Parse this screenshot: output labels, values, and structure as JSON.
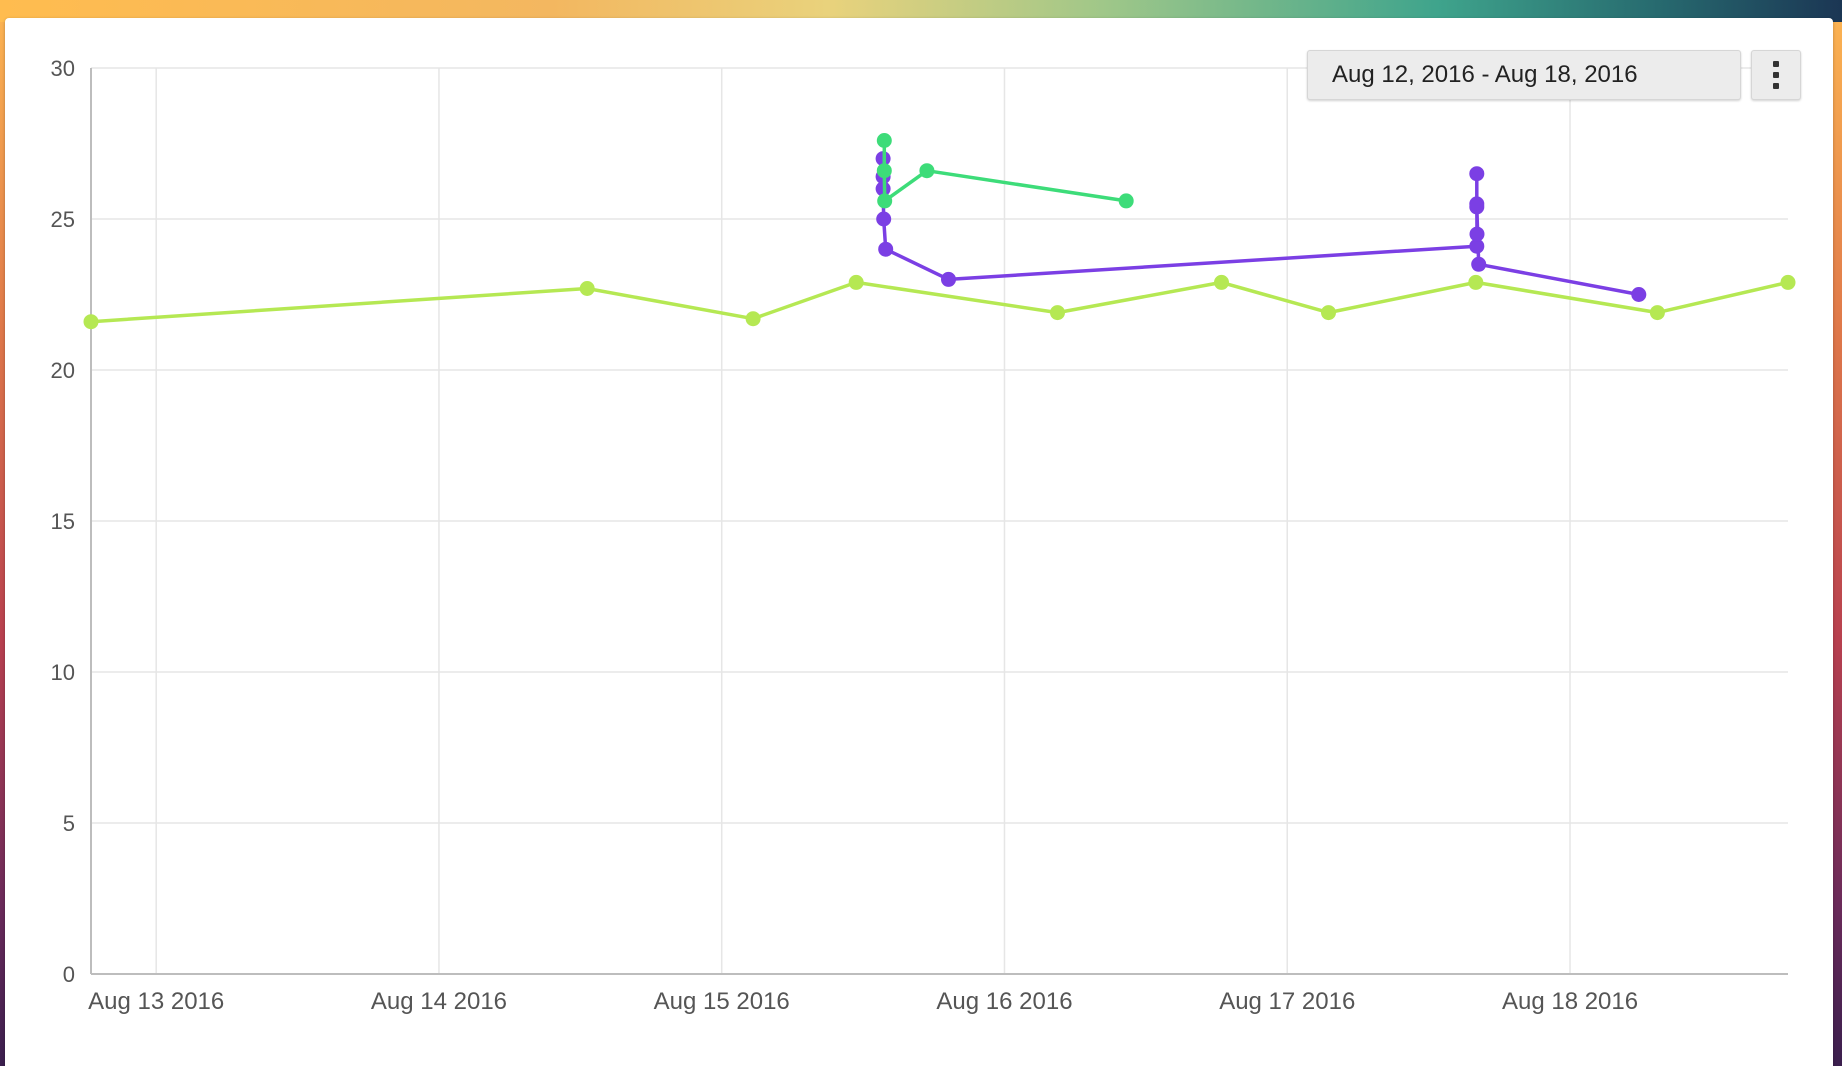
{
  "toolbar": {
    "date_range": "Aug 12, 2016 - Aug 18, 2016",
    "menu_icon": "more-vertical-icon"
  },
  "chart_data": {
    "type": "line",
    "xlabel": "",
    "ylabel": "",
    "ylim": [
      0,
      30
    ],
    "yticks": [
      0,
      5,
      10,
      15,
      20,
      25,
      30
    ],
    "xlim": [
      "2016-08-12 18:28",
      "2016-08-18 18:30"
    ],
    "xticks": [
      {
        "at": "2016-08-13 00:00",
        "label": "Aug 13 2016"
      },
      {
        "at": "2016-08-14 00:00",
        "label": "Aug 14 2016"
      },
      {
        "at": "2016-08-15 00:00",
        "label": "Aug 15 2016"
      },
      {
        "at": "2016-08-16 00:00",
        "label": "Aug 16 2016"
      },
      {
        "at": "2016-08-17 00:00",
        "label": "Aug 17 2016"
      },
      {
        "at": "2016-08-18 00:00",
        "label": "Aug 18 2016"
      }
    ],
    "grid": true,
    "legend": "none",
    "series": [
      {
        "color": "#b5e853",
        "points": [
          {
            "x": "2016-08-12 18:28",
            "y": 21.6
          },
          {
            "x": "2016-08-14 12:35",
            "y": 22.7
          },
          {
            "x": "2016-08-15 02:40",
            "y": 21.7
          },
          {
            "x": "2016-08-15 11:25",
            "y": 22.9
          },
          {
            "x": "2016-08-16 04:30",
            "y": 21.9
          },
          {
            "x": "2016-08-16 18:25",
            "y": 22.9
          },
          {
            "x": "2016-08-17 03:30",
            "y": 21.9
          },
          {
            "x": "2016-08-17 16:00",
            "y": 22.9
          },
          {
            "x": "2016-08-18 07:25",
            "y": 21.9
          },
          {
            "x": "2016-08-18 18:30",
            "y": 22.9
          }
        ]
      },
      {
        "color": "#7b3fe4",
        "points": [
          {
            "x": "2016-08-15 13:42",
            "y": 27.0
          },
          {
            "x": "2016-08-15 13:42",
            "y": 26.4
          },
          {
            "x": "2016-08-15 13:42",
            "y": 26.0
          },
          {
            "x": "2016-08-15 13:45",
            "y": 25.0
          },
          {
            "x": "2016-08-15 13:55",
            "y": 24.0
          },
          {
            "x": "2016-08-15 19:15",
            "y": 23.0
          },
          {
            "x": "2016-08-17 16:05",
            "y": 24.1
          },
          {
            "x": "2016-08-17 16:06",
            "y": 24.5
          },
          {
            "x": "2016-08-17 16:05",
            "y": 25.5
          },
          {
            "x": "2016-08-17 16:05",
            "y": 26.5
          },
          {
            "x": "2016-08-17 16:05",
            "y": 25.4
          },
          {
            "x": "2016-08-17 16:15",
            "y": 23.5
          },
          {
            "x": "2016-08-18 05:50",
            "y": 22.5
          }
        ]
      },
      {
        "color": "#3ddc79",
        "points": [
          {
            "x": "2016-08-15 13:48",
            "y": 27.6
          },
          {
            "x": "2016-08-15 13:48",
            "y": 26.6
          },
          {
            "x": "2016-08-15 13:50",
            "y": 25.6
          },
          {
            "x": "2016-08-15 17:25",
            "y": 26.6
          },
          {
            "x": "2016-08-16 10:20",
            "y": 25.6
          }
        ]
      }
    ]
  }
}
